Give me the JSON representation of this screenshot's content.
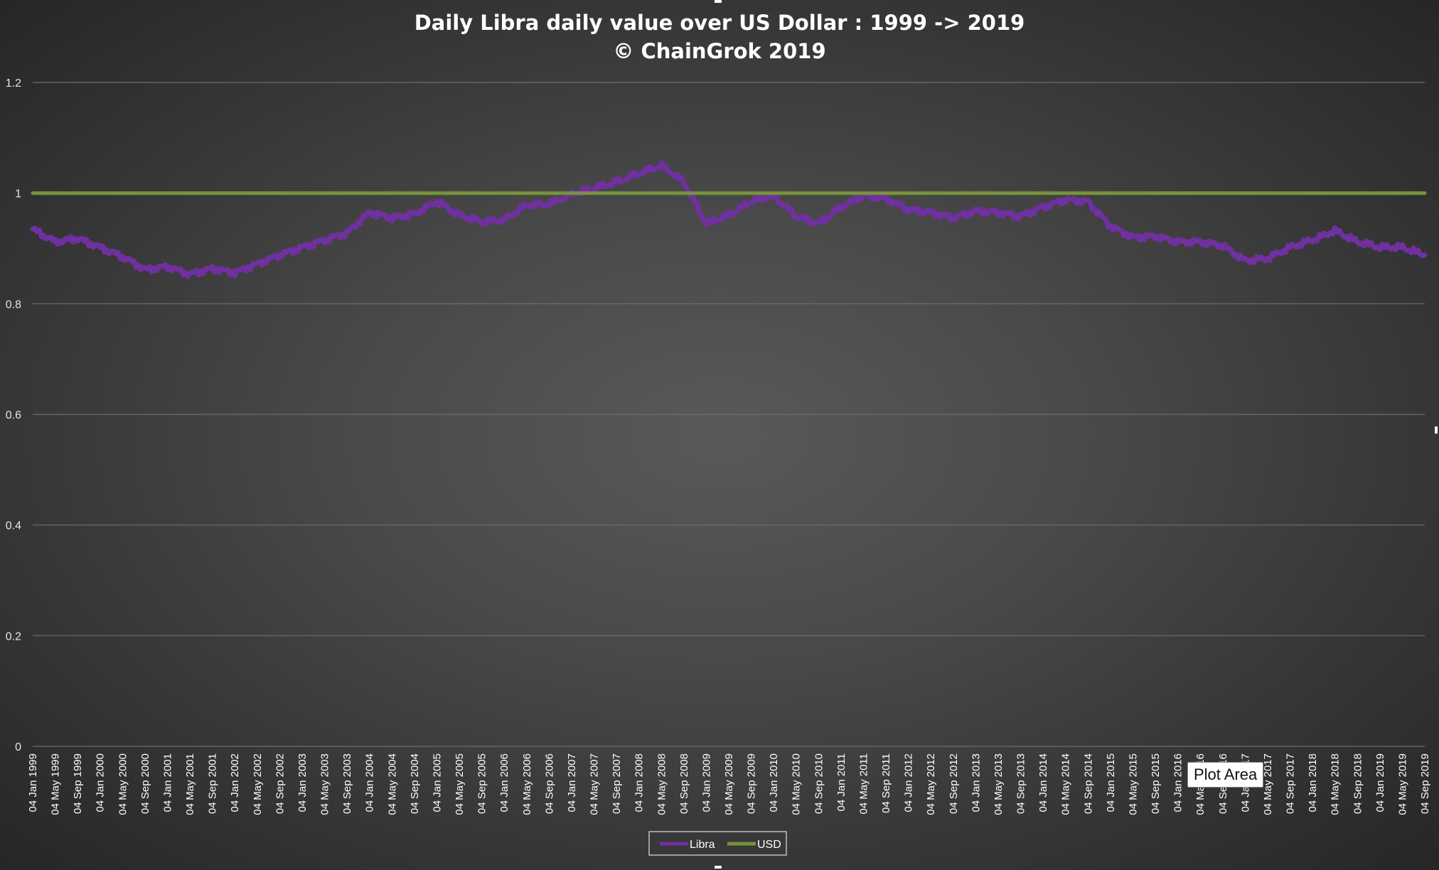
{
  "chart_data": {
    "type": "line",
    "title": "Daily Libra daily value over US Dollar : 1999 -> 2019",
    "subtitle": "© ChainGrok 2019",
    "xlabel": "",
    "ylabel": "",
    "ylim": [
      0,
      1.2
    ],
    "y_ticks": [
      "0",
      "0.2",
      "0.4",
      "0.6",
      "0.8",
      "1",
      "1.2"
    ],
    "grid": true,
    "legend_position": "bottom",
    "x_tick_labels": [
      "04 Jan 1999",
      "04 May 1999",
      "04 Sep 1999",
      "04 Jan 2000",
      "04 May 2000",
      "04 Sep 2000",
      "04 Jan 2001",
      "04 May 2001",
      "04 Sep 2001",
      "04 Jan 2002",
      "04 May 2002",
      "04 Sep 2002",
      "04 Jan 2003",
      "04 May 2003",
      "04 Sep 2003",
      "04 Jan 2004",
      "04 May 2004",
      "04 Sep 2004",
      "04 Jan 2005",
      "04 May 2005",
      "04 Sep 2005",
      "04 Jan 2006",
      "04 May 2006",
      "04 Sep 2006",
      "04 Jan 2007",
      "04 May 2007",
      "04 Sep 2007",
      "04 Jan 2008",
      "04 May 2008",
      "04 Sep 2008",
      "04 Jan 2009",
      "04 May 2009",
      "04 Sep 2009",
      "04 Jan 2010",
      "04 May 2010",
      "04 Sep 2010",
      "04 Jan 2011",
      "04 May 2011",
      "04 Sep 2011",
      "04 Jan 2012",
      "04 May 2012",
      "04 Sep 2012",
      "04 Jan 2013",
      "04 May 2013",
      "04 Sep 2013",
      "04 Jan 2014",
      "04 May 2014",
      "04 Sep 2014",
      "04 Jan 2015",
      "04 May 2015",
      "04 Sep 2015",
      "04 Jan 2016",
      "04 May 2016",
      "04 Sep 2016",
      "04 Jan 2017",
      "04 May 2017",
      "04 Sep 2017",
      "04 Jan 2018",
      "04 May 2018",
      "04 Sep 2018",
      "04 Jan 2019",
      "04 May 2019",
      "04 Sep 2019"
    ],
    "series": [
      {
        "name": "Libra",
        "color": "#7030a0",
        "values": [
          0.935,
          0.912,
          0.918,
          0.902,
          0.885,
          0.862,
          0.867,
          0.853,
          0.864,
          0.856,
          0.872,
          0.888,
          0.902,
          0.915,
          0.928,
          0.965,
          0.955,
          0.962,
          0.985,
          0.96,
          0.948,
          0.952,
          0.978,
          0.98,
          0.998,
          1.008,
          1.02,
          1.035,
          1.05,
          1.02,
          0.945,
          0.96,
          0.985,
          0.995,
          0.958,
          0.945,
          0.975,
          0.995,
          0.99,
          0.97,
          0.965,
          0.955,
          0.968,
          0.965,
          0.958,
          0.975,
          0.988,
          0.985,
          0.94,
          0.92,
          0.922,
          0.912,
          0.912,
          0.905,
          0.878,
          0.882,
          0.902,
          0.915,
          0.932,
          0.912,
          0.902,
          0.902,
          0.888
        ]
      },
      {
        "name": "USD",
        "color": "#77933c",
        "values": [
          1,
          1,
          1,
          1,
          1,
          1,
          1,
          1,
          1,
          1,
          1,
          1,
          1,
          1,
          1,
          1,
          1,
          1,
          1,
          1,
          1,
          1,
          1,
          1,
          1,
          1,
          1,
          1,
          1,
          1,
          1,
          1,
          1,
          1,
          1,
          1,
          1,
          1,
          1,
          1,
          1,
          1,
          1,
          1,
          1,
          1,
          1,
          1,
          1,
          1,
          1,
          1,
          1,
          1,
          1,
          1,
          1,
          1,
          1,
          1,
          1,
          1,
          1
        ]
      }
    ]
  },
  "tooltip": {
    "text": "Plot Area"
  }
}
